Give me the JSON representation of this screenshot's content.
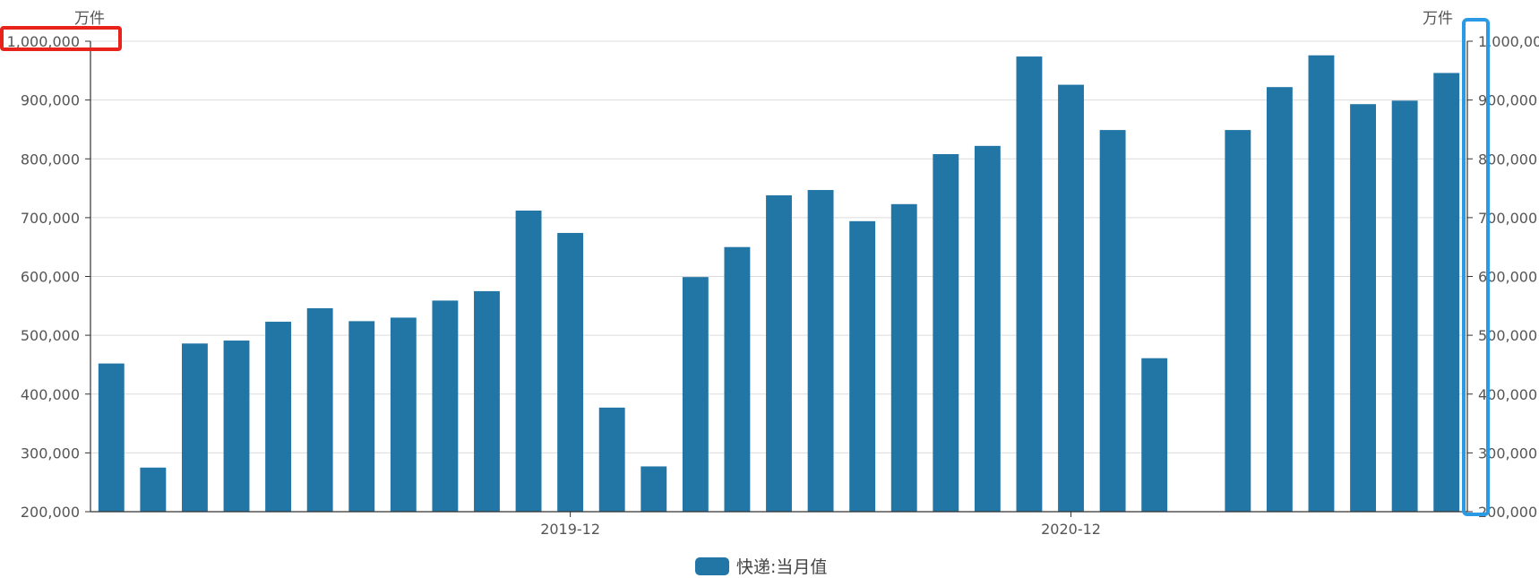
{
  "chart_data": {
    "type": "bar",
    "y_unit_left": "万件",
    "y_unit_right": "万件",
    "x_tick_labels": [
      {
        "index": 11,
        "label": "2019-12"
      },
      {
        "index": 23,
        "label": "2020-12"
      }
    ],
    "series": [
      {
        "name": "快递:当月值",
        "color": "#2276a6",
        "values": [
          452000,
          275000,
          486000,
          491000,
          523000,
          546000,
          524000,
          530000,
          559000,
          575000,
          712000,
          674000,
          377000,
          277000,
          599000,
          650000,
          738000,
          747000,
          694000,
          723000,
          808000,
          822000,
          974000,
          926000,
          849000,
          461000,
          null,
          849000,
          922000,
          976000,
          893000,
          899000,
          946000
        ]
      }
    ],
    "ylim": [
      200000,
      1000000
    ],
    "y_ticks": [
      {
        "value": 200000,
        "label": "200,000"
      },
      {
        "value": 300000,
        "label": "300,000"
      },
      {
        "value": 400000,
        "label": "400,000"
      },
      {
        "value": 500000,
        "label": "500,000"
      },
      {
        "value": 600000,
        "label": "600,000"
      },
      {
        "value": 700000,
        "label": "700,000"
      },
      {
        "value": 800000,
        "label": "800,000"
      },
      {
        "value": 900000,
        "label": "900,000"
      },
      {
        "value": 1000000,
        "label": "1,000,000"
      }
    ],
    "grid": true,
    "legend": "bottom-center",
    "annotations": [
      {
        "type": "highlight-box",
        "target": "left-axis-top-label",
        "color": "#e8231b"
      },
      {
        "type": "highlight-box",
        "target": "right-axis",
        "color": "#2a9ae6"
      }
    ]
  }
}
